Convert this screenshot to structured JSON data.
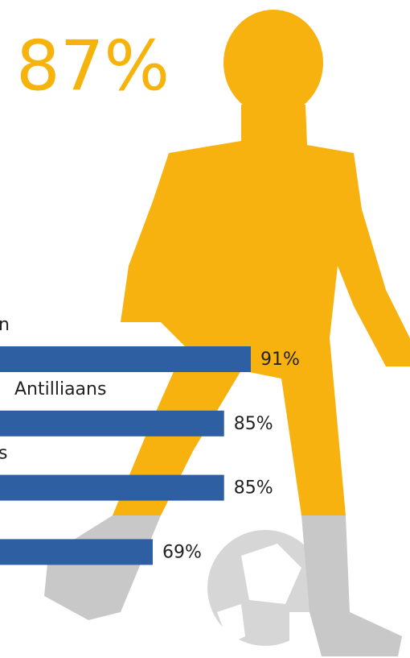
{
  "chart_data": {
    "type": "bar",
    "orientation": "horizontal",
    "title": "87%",
    "categories": [
      "n",
      "Antilliaans",
      "s",
      null
    ],
    "values": [
      91,
      85,
      85,
      69
    ],
    "value_labels": [
      "91%",
      "85%",
      "85%",
      "69%"
    ],
    "color": "#2e5fa3"
  }
}
